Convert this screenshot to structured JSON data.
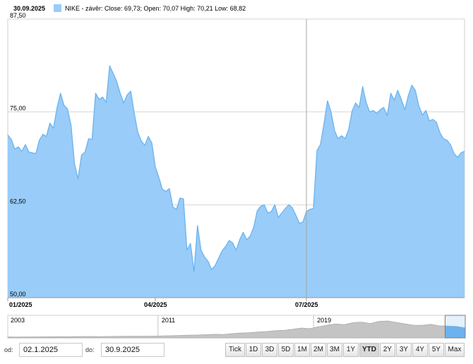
{
  "header": {
    "date": "30.09.2025",
    "legend_text": "NIKE - závěr: Close: 69,73; Open: 70,07 High: 70,21 Low: 68,82"
  },
  "colors": {
    "fill": "#99ccf8",
    "line": "#6cb3ee",
    "grid": "#d6d6d6",
    "nav_fill": "#c4c4c4",
    "nav_selected": "#6cb3ee"
  },
  "chart_data": {
    "type": "area",
    "title": "",
    "series": [
      {
        "name": "NIKE - závěr",
        "points": [
          [
            0,
            71.9
          ],
          [
            1,
            71.3
          ],
          [
            2,
            70.0
          ],
          [
            3,
            70.3
          ],
          [
            4,
            69.7
          ],
          [
            5,
            70.6
          ],
          [
            6,
            69.6
          ],
          [
            7,
            69.5
          ],
          [
            8,
            69.4
          ],
          [
            9,
            71.2
          ],
          [
            10,
            72.0
          ],
          [
            11,
            71.7
          ],
          [
            12,
            73.5
          ],
          [
            13,
            72.8
          ],
          [
            14,
            75.5
          ],
          [
            15,
            77.5
          ],
          [
            16,
            75.9
          ],
          [
            17,
            75.4
          ],
          [
            18,
            73.2
          ],
          [
            19,
            68.0
          ],
          [
            20,
            66.0
          ],
          [
            21,
            69.2
          ],
          [
            22,
            69.6
          ],
          [
            23,
            71.4
          ],
          [
            24,
            71.3
          ],
          [
            25,
            77.5
          ],
          [
            26,
            76.7
          ],
          [
            27,
            77.0
          ],
          [
            28,
            76.3
          ],
          [
            29,
            81.2
          ],
          [
            30,
            80.2
          ],
          [
            31,
            79.1
          ],
          [
            32,
            77.5
          ],
          [
            33,
            76.2
          ],
          [
            34,
            77.3
          ],
          [
            35,
            77.8
          ],
          [
            36,
            74.8
          ],
          [
            37,
            72.3
          ],
          [
            38,
            71.1
          ],
          [
            39,
            70.5
          ],
          [
            40,
            71.7
          ],
          [
            41,
            70.8
          ],
          [
            42,
            67.6
          ],
          [
            43,
            66.2
          ],
          [
            44,
            64.6
          ],
          [
            45,
            64.3
          ],
          [
            46,
            64.7
          ],
          [
            47,
            62.2
          ],
          [
            48,
            61.9
          ],
          [
            49,
            63.4
          ],
          [
            50,
            63.3
          ],
          [
            51,
            56.4
          ],
          [
            52,
            57.3
          ],
          [
            53,
            53.5
          ],
          [
            54,
            59.7
          ],
          [
            55,
            56.4
          ],
          [
            56,
            55.5
          ],
          [
            57,
            54.9
          ],
          [
            58,
            53.8
          ],
          [
            59,
            54.3
          ],
          [
            60,
            55.3
          ],
          [
            61,
            56.3
          ],
          [
            62,
            56.9
          ],
          [
            63,
            57.7
          ],
          [
            64,
            57.4
          ],
          [
            65,
            56.4
          ],
          [
            66,
            57.8
          ],
          [
            67,
            58.8
          ],
          [
            68,
            57.8
          ],
          [
            69,
            58.3
          ],
          [
            70,
            59.5
          ],
          [
            71,
            61.7
          ],
          [
            72,
            62.3
          ],
          [
            73,
            62.5
          ],
          [
            74,
            61.4
          ],
          [
            75,
            61.6
          ],
          [
            76,
            62.5
          ],
          [
            77,
            60.8
          ],
          [
            78,
            61.4
          ],
          [
            79,
            62.0
          ],
          [
            80,
            62.5
          ],
          [
            81,
            62.1
          ],
          [
            82,
            61.1
          ],
          [
            83,
            60.0
          ],
          [
            84,
            60.2
          ],
          [
            85,
            61.6
          ],
          [
            86,
            61.9
          ],
          [
            87,
            62.0
          ],
          [
            88,
            69.8
          ],
          [
            89,
            70.6
          ],
          [
            90,
            73.4
          ],
          [
            91,
            76.5
          ],
          [
            92,
            75.0
          ],
          [
            93,
            72.5
          ],
          [
            94,
            71.4
          ],
          [
            95,
            71.8
          ],
          [
            96,
            71.4
          ],
          [
            97,
            72.6
          ],
          [
            98,
            75.1
          ],
          [
            99,
            76.2
          ],
          [
            100,
            75.6
          ],
          [
            101,
            78.4
          ],
          [
            102,
            76.3
          ],
          [
            103,
            75.0
          ],
          [
            104,
            75.2
          ],
          [
            105,
            74.8
          ],
          [
            106,
            75.3
          ],
          [
            107,
            75.6
          ],
          [
            108,
            74.5
          ],
          [
            109,
            77.5
          ],
          [
            110,
            76.6
          ],
          [
            111,
            77.9
          ],
          [
            112,
            76.7
          ],
          [
            113,
            75.3
          ],
          [
            114,
            77.2
          ],
          [
            115,
            78.6
          ],
          [
            116,
            77.9
          ],
          [
            117,
            75.8
          ],
          [
            118,
            74.6
          ],
          [
            119,
            75.2
          ],
          [
            120,
            73.8
          ],
          [
            121,
            74.0
          ],
          [
            122,
            73.6
          ],
          [
            123,
            72.2
          ],
          [
            124,
            71.4
          ],
          [
            125,
            71.2
          ],
          [
            126,
            70.6
          ],
          [
            127,
            69.4
          ],
          [
            128,
            68.9
          ],
          [
            129,
            69.5
          ],
          [
            130,
            69.7
          ]
        ]
      }
    ],
    "ylim": [
      50,
      87.5
    ],
    "yticks": [
      "87,50",
      "75,00",
      "62,50",
      "50,00"
    ],
    "yticks_values": [
      87.5,
      75,
      62.5,
      50
    ],
    "xticks": [
      "01/2025",
      "04/2025",
      "07/2025"
    ],
    "xticks_values": [
      0,
      42,
      85
    ],
    "x_crosshair_value": 85,
    "grid": true,
    "legend_position": "top-left"
  },
  "navigator": {
    "labels": [
      "2003",
      "2011",
      "2019"
    ],
    "label_positions": [
      0.0,
      0.33,
      0.67
    ],
    "values": [
      1.6,
      1.5,
      1.7,
      1.6,
      1.8,
      1.9,
      2.1,
      2.0,
      2.2,
      2.4,
      2.5,
      2.3,
      2.6,
      2.7,
      2.9,
      2.8,
      3.0,
      3.2,
      3.5,
      3.8,
      4.3,
      4.8,
      5.0,
      5.6,
      6.2,
      6.0,
      7.5,
      8.3,
      9.0,
      10.2,
      11.0,
      12.5,
      13.1,
      15.0,
      17.2,
      16.0,
      19.5,
      22.0,
      24.1,
      23.0,
      26.5,
      27.4,
      25.0,
      28.6,
      29.4,
      27.0,
      24.3,
      22.1,
      21.8,
      23.5,
      21.0,
      20.6,
      19.8,
      17.5
    ],
    "selected_from": 0.956
  },
  "controls": {
    "from_label": "od:",
    "from_value": "02.1.2025",
    "to_label": "do:",
    "to_value": "30.9.2025",
    "buttons": [
      "Tick",
      "1D",
      "3D",
      "5D",
      "1M",
      "2M",
      "3M",
      "1Y",
      "YTD",
      "2Y",
      "3Y",
      "4Y",
      "5Y",
      "Max"
    ],
    "active_button": "YTD"
  }
}
